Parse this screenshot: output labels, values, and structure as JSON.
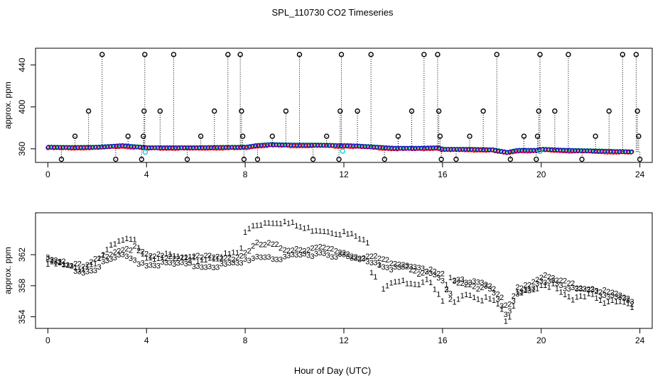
{
  "title": "SPL_110730  CO2 Timeseries",
  "xlabel": "Hour of Day (UTC)",
  "colors": {
    "series1": "#ff0000",
    "series2": "#00cc00",
    "series3": "#0000ff",
    "outlier": "#000000",
    "cyan": "#00cccc"
  },
  "chart_data": [
    {
      "type": "scatter",
      "panel": "top",
      "ylabel": "approx. ppm",
      "xlim": [
        -0.5,
        24.5
      ],
      "ylim": [
        347,
        456
      ],
      "xticks": [
        0,
        4,
        8,
        12,
        16,
        20,
        24
      ],
      "yticks": [
        360,
        400,
        440
      ],
      "baseline": [
        [
          0,
          361.5
        ],
        [
          1,
          361.2
        ],
        [
          2,
          361.5
        ],
        [
          3,
          363
        ],
        [
          4,
          361
        ],
        [
          5,
          361
        ],
        [
          6,
          361
        ],
        [
          7,
          361.3
        ],
        [
          8,
          361.5
        ],
        [
          8.4,
          363
        ],
        [
          9,
          364
        ],
        [
          10,
          363.5
        ],
        [
          11,
          363.5
        ],
        [
          11.8,
          363
        ],
        [
          12.2,
          363
        ],
        [
          13,
          362
        ],
        [
          14,
          360.5
        ],
        [
          15,
          360.5
        ],
        [
          15.8,
          361
        ],
        [
          16,
          359.5
        ],
        [
          17,
          359.5
        ],
        [
          18,
          359
        ],
        [
          18.6,
          356.5
        ],
        [
          19,
          358.5
        ],
        [
          19.8,
          358.5
        ],
        [
          20,
          359.5
        ],
        [
          21,
          358.5
        ],
        [
          22,
          358
        ],
        [
          23.7,
          357
        ]
      ],
      "cyan_points": [
        [
          3.95,
          356.8
        ],
        [
          11.95,
          357.8
        ],
        [
          19.95,
          357.5
        ]
      ],
      "outlier_high": 450,
      "outlier_mid": 396,
      "outlier_low2": 372,
      "outlier_low": 350,
      "spikes": [
        {
          "x": 0.55,
          "y": 350
        },
        {
          "x": 1.1,
          "y": 372
        },
        {
          "x": 1.65,
          "y": 396
        },
        {
          "x": 2.2,
          "y": 450
        },
        {
          "x": 2.75,
          "y": 350
        },
        {
          "x": 3.25,
          "y": 372
        },
        {
          "x": 3.8,
          "y": 350
        },
        {
          "x": 3.87,
          "y": 372
        },
        {
          "x": 3.9,
          "y": 396
        },
        {
          "x": 3.93,
          "y": 450
        },
        {
          "x": 4.55,
          "y": 396
        },
        {
          "x": 5.1,
          "y": 450
        },
        {
          "x": 5.65,
          "y": 350
        },
        {
          "x": 6.2,
          "y": 372
        },
        {
          "x": 6.75,
          "y": 396
        },
        {
          "x": 7.3,
          "y": 450
        },
        {
          "x": 7.8,
          "y": 450
        },
        {
          "x": 7.85,
          "y": 396
        },
        {
          "x": 7.9,
          "y": 372
        },
        {
          "x": 7.95,
          "y": 350
        },
        {
          "x": 8.5,
          "y": 350
        },
        {
          "x": 9.1,
          "y": 372
        },
        {
          "x": 9.65,
          "y": 396
        },
        {
          "x": 10.2,
          "y": 450
        },
        {
          "x": 10.75,
          "y": 350
        },
        {
          "x": 11.3,
          "y": 372
        },
        {
          "x": 11.8,
          "y": 350
        },
        {
          "x": 11.85,
          "y": 396
        },
        {
          "x": 11.9,
          "y": 450
        },
        {
          "x": 12.55,
          "y": 396
        },
        {
          "x": 13.1,
          "y": 450
        },
        {
          "x": 13.65,
          "y": 350
        },
        {
          "x": 14.2,
          "y": 372
        },
        {
          "x": 14.75,
          "y": 396
        },
        {
          "x": 15.25,
          "y": 450
        },
        {
          "x": 15.8,
          "y": 450
        },
        {
          "x": 15.85,
          "y": 396
        },
        {
          "x": 15.9,
          "y": 372
        },
        {
          "x": 15.95,
          "y": 350
        },
        {
          "x": 16.55,
          "y": 350
        },
        {
          "x": 17.1,
          "y": 372
        },
        {
          "x": 17.65,
          "y": 396
        },
        {
          "x": 18.2,
          "y": 450
        },
        {
          "x": 18.75,
          "y": 350
        },
        {
          "x": 19.3,
          "y": 372
        },
        {
          "x": 19.8,
          "y": 350
        },
        {
          "x": 19.85,
          "y": 372
        },
        {
          "x": 19.9,
          "y": 396
        },
        {
          "x": 19.95,
          "y": 450
        },
        {
          "x": 20.55,
          "y": 396
        },
        {
          "x": 21.1,
          "y": 450
        },
        {
          "x": 21.65,
          "y": 350
        },
        {
          "x": 22.2,
          "y": 372
        },
        {
          "x": 22.75,
          "y": 396
        },
        {
          "x": 23.3,
          "y": 450
        },
        {
          "x": 23.85,
          "y": 450
        },
        {
          "x": 23.9,
          "y": 396
        },
        {
          "x": 23.95,
          "y": 372
        },
        {
          "x": 24.0,
          "y": 350
        }
      ]
    },
    {
      "type": "scatter",
      "panel": "bottom",
      "ylabel": "approx. ppm",
      "xlim": [
        -0.5,
        24.5
      ],
      "ylim": [
        352.5,
        367.4
      ],
      "xticks": [
        0,
        4,
        8,
        12,
        16,
        20,
        24
      ],
      "yticks": [
        354,
        358,
        362
      ],
      "series": [
        {
          "name": "1",
          "symbol": "1",
          "color": "#ff0000",
          "points": [
            [
              0,
              361
            ],
            [
              0.5,
              361
            ],
            [
              1,
              360.5
            ],
            [
              1.5,
              360.5
            ],
            [
              2,
              361.5
            ],
            [
              2.5,
              363
            ],
            [
              3,
              364
            ],
            [
              3.5,
              364
            ],
            [
              4,
              362
            ],
            [
              5,
              362
            ],
            [
              6,
              361.5
            ],
            [
              7,
              362
            ],
            [
              7.8,
              362.5
            ],
            [
              8,
              365
            ],
            [
              8.3,
              366
            ],
            [
              9,
              366.5
            ],
            [
              9.5,
              366.5
            ],
            [
              10,
              366
            ],
            [
              10.5,
              365.5
            ],
            [
              11,
              365.5
            ],
            [
              12,
              365
            ],
            [
              12.5,
              364.5
            ],
            [
              13,
              363.5
            ],
            [
              13.2,
              358
            ],
            [
              13.4,
              362
            ],
            [
              13.6,
              358
            ],
            [
              14,
              359
            ],
            [
              14.5,
              358.5
            ],
            [
              15,
              358
            ],
            [
              15.5,
              359
            ],
            [
              16,
              356.5
            ],
            [
              16.3,
              360
            ],
            [
              16.5,
              356
            ],
            [
              17,
              357
            ],
            [
              17.5,
              356
            ],
            [
              18,
              357
            ],
            [
              18.5,
              355
            ],
            [
              18.6,
              353
            ],
            [
              18.8,
              355
            ],
            [
              19,
              357
            ],
            [
              19.5,
              357.5
            ],
            [
              20,
              358
            ],
            [
              20.5,
              358.5
            ],
            [
              21,
              357
            ],
            [
              21.5,
              356.5
            ],
            [
              22,
              357
            ],
            [
              22.5,
              356
            ],
            [
              23,
              356.5
            ],
            [
              23.5,
              356
            ],
            [
              23.7,
              355.5
            ]
          ]
        },
        {
          "name": "2",
          "symbol": "2",
          "color": "#00cc00",
          "points": [
            [
              0,
              362
            ],
            [
              0.5,
              361.5
            ],
            [
              1,
              361
            ],
            [
              1.5,
              360.5
            ],
            [
              2,
              361.5
            ],
            [
              2.5,
              362.5
            ],
            [
              3,
              363
            ],
            [
              3.5,
              363
            ],
            [
              4,
              362
            ],
            [
              5,
              362
            ],
            [
              6,
              361.8
            ],
            [
              7,
              361.8
            ],
            [
              7.8,
              362
            ],
            [
              8,
              362.5
            ],
            [
              8.5,
              363.5
            ],
            [
              9,
              363.5
            ],
            [
              9.5,
              363
            ],
            [
              10,
              363
            ],
            [
              11,
              363
            ],
            [
              12,
              362.5
            ],
            [
              12.5,
              362
            ],
            [
              13,
              362
            ],
            [
              13.5,
              361.5
            ],
            [
              14,
              361
            ],
            [
              14.5,
              361
            ],
            [
              15,
              360
            ],
            [
              15.5,
              360
            ],
            [
              16,
              359.5
            ],
            [
              16.3,
              356
            ],
            [
              16.5,
              359
            ],
            [
              17,
              358.5
            ],
            [
              17.5,
              358
            ],
            [
              18,
              358
            ],
            [
              18.5,
              356
            ],
            [
              18.6,
              355
            ],
            [
              18.8,
              356
            ],
            [
              19,
              358
            ],
            [
              19.5,
              358.5
            ],
            [
              20,
              359.5
            ],
            [
              20.5,
              359
            ],
            [
              21,
              358.5
            ],
            [
              21.5,
              358
            ],
            [
              22,
              358
            ],
            [
              22.5,
              357.5
            ],
            [
              23,
              357
            ],
            [
              23.5,
              356.5
            ],
            [
              23.7,
              356
            ]
          ]
        },
        {
          "name": "3",
          "symbol": "3",
          "color": "#0000ff",
          "points": [
            [
              0,
              361.5
            ],
            [
              0.5,
              361
            ],
            [
              1,
              360.5
            ],
            [
              1.5,
              360
            ],
            [
              2,
              360.5
            ],
            [
              2.5,
              361.5
            ],
            [
              3,
              362
            ],
            [
              3.5,
              361.5
            ],
            [
              4,
              361
            ],
            [
              5,
              361
            ],
            [
              6,
              360.8
            ],
            [
              7,
              360.8
            ],
            [
              7.8,
              361
            ],
            [
              8,
              361.5
            ],
            [
              8.5,
              362
            ],
            [
              9,
              362
            ],
            [
              9.5,
              361.5
            ],
            [
              10,
              362
            ],
            [
              11,
              362.5
            ],
            [
              12,
              362
            ],
            [
              12.5,
              361.5
            ],
            [
              13,
              361.5
            ],
            [
              13.5,
              361
            ],
            [
              14,
              360.5
            ],
            [
              14.5,
              360.5
            ],
            [
              15,
              360.5
            ],
            [
              15.5,
              360
            ],
            [
              16,
              359
            ],
            [
              16.3,
              357
            ],
            [
              16.5,
              359
            ],
            [
              17,
              358.5
            ],
            [
              17.5,
              358.5
            ],
            [
              18,
              358
            ],
            [
              18.5,
              355
            ],
            [
              18.6,
              354.5
            ],
            [
              18.8,
              355.5
            ],
            [
              19,
              357
            ],
            [
              19.5,
              357.5
            ],
            [
              20,
              358.5
            ],
            [
              20.5,
              359
            ],
            [
              21,
              358
            ],
            [
              21.5,
              357.5
            ],
            [
              22,
              357.5
            ],
            [
              22.5,
              357
            ],
            [
              23,
              357
            ],
            [
              23.5,
              356.5
            ],
            [
              23.7,
              356
            ]
          ]
        }
      ]
    }
  ]
}
